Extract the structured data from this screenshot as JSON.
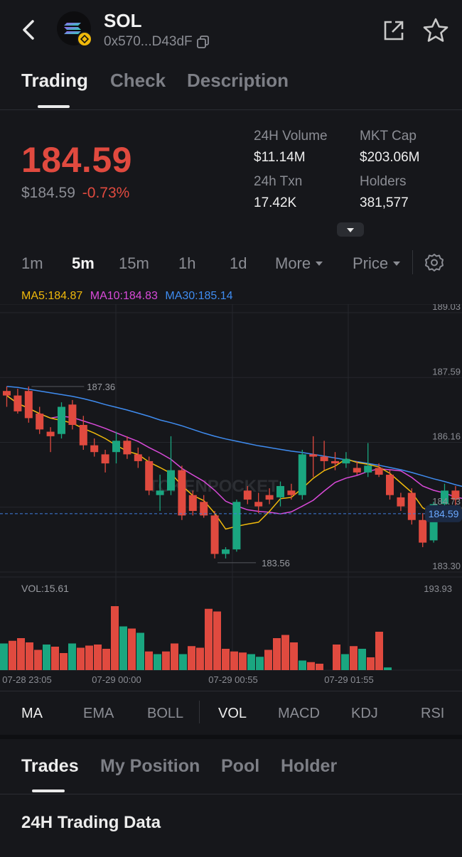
{
  "header": {
    "token_symbol": "SOL",
    "address": "0x570...D43dF"
  },
  "tabs": [
    "Trading",
    "Check",
    "Description"
  ],
  "price": {
    "main": "184.59",
    "usd": "$184.59",
    "change": "-0.73%"
  },
  "stats": {
    "volume_label": "24H Volume",
    "volume_value": "$11.14M",
    "mcap_label": "MKT Cap",
    "mcap_value": "$203.06M",
    "txn_label": "24h Txn",
    "txn_value": "17.42K",
    "holders_label": "Holders",
    "holders_value": "381,577"
  },
  "timeframes": [
    "1m",
    "5m",
    "15m",
    "1h",
    "1d",
    "More",
    "Price"
  ],
  "ma_legend": {
    "ma5": "MA5:184.87",
    "ma10": "MA10:184.83",
    "ma30": "MA30:185.14"
  },
  "colors": {
    "up": "#1aa680",
    "down": "#e04a3f",
    "ma5": "#f0b90b",
    "ma10": "#d94ad9",
    "ma30": "#3f8cf0",
    "price_label": "#6aa8ff"
  },
  "chart_data": {
    "type": "candlestick",
    "y_ticks": [
      "189.03",
      "187.59",
      "186.16",
      "184.73",
      "183.30"
    ],
    "ylim": [
      183.3,
      189.03
    ],
    "current_price": "184.59",
    "max_label": "187.36",
    "min_label": "183.56",
    "x_labels": [
      "07-28 23:05",
      "07-29 00:00",
      "07-29 00:55",
      "07-29 01:55"
    ],
    "watermark": "TOKENPOCKET",
    "candles": [
      {
        "o": 187.3,
        "h": 187.4,
        "l": 186.95,
        "c": 187.2
      },
      {
        "o": 187.2,
        "h": 187.35,
        "l": 186.8,
        "c": 186.85
      },
      {
        "o": 187.3,
        "h": 187.4,
        "l": 186.6,
        "c": 186.7
      },
      {
        "o": 186.8,
        "h": 186.95,
        "l": 186.35,
        "c": 186.45
      },
      {
        "o": 186.4,
        "h": 186.5,
        "l": 185.95,
        "c": 186.3
      },
      {
        "o": 186.35,
        "h": 187.05,
        "l": 186.25,
        "c": 186.95
      },
      {
        "o": 187.0,
        "h": 187.1,
        "l": 186.45,
        "c": 186.55
      },
      {
        "o": 186.55,
        "h": 186.75,
        "l": 186.0,
        "c": 186.1
      },
      {
        "o": 186.1,
        "h": 186.25,
        "l": 185.85,
        "c": 185.95
      },
      {
        "o": 185.9,
        "h": 186.0,
        "l": 185.5,
        "c": 185.7
      },
      {
        "o": 185.95,
        "h": 186.4,
        "l": 185.7,
        "c": 186.2
      },
      {
        "o": 186.2,
        "h": 186.3,
        "l": 185.8,
        "c": 185.9
      },
      {
        "o": 185.9,
        "h": 186.05,
        "l": 185.6,
        "c": 185.75
      },
      {
        "o": 185.75,
        "h": 185.85,
        "l": 185.0,
        "c": 185.1
      },
      {
        "o": 185.0,
        "h": 185.45,
        "l": 184.65,
        "c": 185.1
      },
      {
        "o": 185.1,
        "h": 186.3,
        "l": 185.0,
        "c": 185.55
      },
      {
        "o": 185.55,
        "h": 185.65,
        "l": 184.45,
        "c": 184.55
      },
      {
        "o": 185.0,
        "h": 185.1,
        "l": 184.55,
        "c": 184.65
      },
      {
        "o": 184.85,
        "h": 185.0,
        "l": 184.5,
        "c": 184.55
      },
      {
        "o": 184.55,
        "h": 184.65,
        "l": 183.6,
        "c": 183.7
      },
      {
        "o": 183.7,
        "h": 183.85,
        "l": 183.6,
        "c": 183.8
      },
      {
        "o": 183.8,
        "h": 184.9,
        "l": 183.75,
        "c": 184.85
      },
      {
        "o": 185.1,
        "h": 185.2,
        "l": 184.8,
        "c": 184.9
      },
      {
        "o": 184.85,
        "h": 185.05,
        "l": 184.6,
        "c": 184.75
      },
      {
        "o": 185.0,
        "h": 185.15,
        "l": 184.8,
        "c": 184.9
      },
      {
        "o": 184.95,
        "h": 185.3,
        "l": 184.75,
        "c": 185.2
      },
      {
        "o": 185.1,
        "h": 185.25,
        "l": 184.9,
        "c": 185.0
      },
      {
        "o": 185.0,
        "h": 186.0,
        "l": 184.9,
        "c": 185.9
      },
      {
        "o": 185.9,
        "h": 186.3,
        "l": 185.4,
        "c": 185.85
      },
      {
        "o": 185.85,
        "h": 186.2,
        "l": 185.55,
        "c": 185.75
      },
      {
        "o": 185.75,
        "h": 185.95,
        "l": 185.55,
        "c": 185.7
      },
      {
        "o": 185.7,
        "h": 185.95,
        "l": 185.6,
        "c": 185.8
      },
      {
        "o": 185.6,
        "h": 185.75,
        "l": 185.45,
        "c": 185.5
      },
      {
        "o": 185.5,
        "h": 186.15,
        "l": 185.4,
        "c": 185.65
      },
      {
        "o": 185.6,
        "h": 185.7,
        "l": 185.4,
        "c": 185.45
      },
      {
        "o": 185.45,
        "h": 185.55,
        "l": 184.9,
        "c": 185.0
      },
      {
        "o": 184.95,
        "h": 185.05,
        "l": 184.65,
        "c": 184.75
      },
      {
        "o": 185.05,
        "h": 185.15,
        "l": 184.35,
        "c": 184.45
      },
      {
        "o": 184.45,
        "h": 184.6,
        "l": 183.85,
        "c": 183.95
      },
      {
        "o": 184.0,
        "h": 184.85,
        "l": 183.95,
        "c": 184.8
      },
      {
        "o": 184.8,
        "h": 185.25,
        "l": 184.7,
        "c": 185.1
      },
      {
        "o": 185.1,
        "h": 185.2,
        "l": 184.75,
        "c": 184.9
      },
      {
        "o": 185.0,
        "h": 185.2,
        "l": 184.8,
        "c": 185.05
      },
      {
        "o": 185.05,
        "h": 185.15,
        "l": 184.45,
        "c": 184.7
      },
      {
        "o": 184.8,
        "h": 184.9,
        "l": 183.95,
        "c": 184.3
      },
      {
        "o": 184.3,
        "h": 184.5,
        "l": 184.25,
        "c": 184.45
      }
    ],
    "ma30": [
      187.4,
      187.38,
      187.34,
      187.3,
      187.26,
      187.22,
      187.18,
      187.13,
      187.07,
      187.0,
      186.94,
      186.88,
      186.81,
      186.74,
      186.66,
      186.6,
      186.53,
      186.45,
      186.37,
      186.3,
      186.24,
      186.19,
      186.14,
      186.09,
      186.05,
      186.01,
      185.97,
      185.94,
      185.9,
      185.86,
      185.82,
      185.78,
      185.74,
      185.7,
      185.66,
      185.61,
      185.56,
      185.5,
      185.43,
      185.36,
      185.3,
      185.23,
      185.17,
      185.11,
      185.05,
      184.98
    ]
  },
  "volume": {
    "label": "VOL:15.61",
    "max_label": "193.93",
    "bars": [
      {
        "v": 50,
        "up": true
      },
      {
        "v": 55,
        "up": false
      },
      {
        "v": 60,
        "up": false
      },
      {
        "v": 52,
        "up": false
      },
      {
        "v": 38,
        "up": false
      },
      {
        "v": 48,
        "up": true
      },
      {
        "v": 44,
        "up": false
      },
      {
        "v": 32,
        "up": false
      },
      {
        "v": 50,
        "up": true
      },
      {
        "v": 42,
        "up": false
      },
      {
        "v": 46,
        "up": false
      },
      {
        "v": 48,
        "up": false
      },
      {
        "v": 40,
        "up": false
      },
      {
        "v": 120,
        "up": false
      },
      {
        "v": 82,
        "up": true
      },
      {
        "v": 78,
        "up": false
      },
      {
        "v": 70,
        "up": true
      },
      {
        "v": 35,
        "up": false
      },
      {
        "v": 30,
        "up": true
      },
      {
        "v": 35,
        "up": false
      },
      {
        "v": 50,
        "up": false
      },
      {
        "v": 30,
        "up": true
      },
      {
        "v": 45,
        "up": false
      },
      {
        "v": 42,
        "up": false
      },
      {
        "v": 115,
        "up": false
      },
      {
        "v": 110,
        "up": false
      },
      {
        "v": 40,
        "up": false
      },
      {
        "v": 35,
        "up": false
      },
      {
        "v": 33,
        "up": false
      },
      {
        "v": 30,
        "up": true
      },
      {
        "v": 25,
        "up": true
      },
      {
        "v": 38,
        "up": false
      },
      {
        "v": 60,
        "up": false
      },
      {
        "v": 66,
        "up": false
      },
      {
        "v": 52,
        "up": false
      },
      {
        "v": 18,
        "up": true
      },
      {
        "v": 15,
        "up": false
      },
      {
        "v": 12,
        "up": false
      },
      {
        "v": 0,
        "up": false
      },
      {
        "v": 48,
        "up": false
      },
      {
        "v": 30,
        "up": true
      },
      {
        "v": 45,
        "up": false
      },
      {
        "v": 40,
        "up": true
      },
      {
        "v": 24,
        "up": false
      },
      {
        "v": 72,
        "up": false
      },
      {
        "v": 5,
        "up": true
      }
    ]
  },
  "indicators": [
    "MA",
    "EMA",
    "BOLL",
    "VOL",
    "MACD",
    "KDJ",
    "RSI"
  ],
  "bottom_tabs": [
    "Trades",
    "My Position",
    "Pool",
    "Holder"
  ],
  "section_title": "24H Trading Data"
}
